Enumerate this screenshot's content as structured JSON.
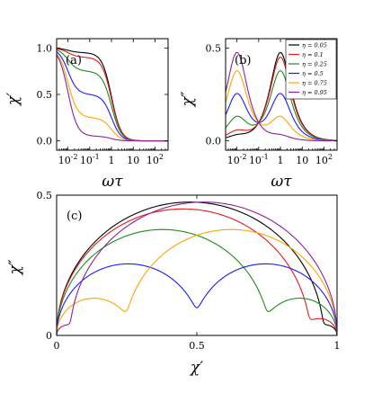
{
  "chart_data": [
    {
      "panel": "a",
      "type": "line",
      "panel_label": "(a)",
      "xlabel": "ωτ",
      "ylabel": "χ′",
      "xscale": "log",
      "xlim": [
        0.003,
        400
      ],
      "ylim": [
        -0.1,
        1.1
      ],
      "xticks": [
        {
          "v": 0.01,
          "base": "10",
          "exp": "-2"
        },
        {
          "v": 0.1,
          "base": "10",
          "exp": "-1"
        },
        {
          "v": 1,
          "base": "1",
          "exp": ""
        },
        {
          "v": 10,
          "base": "10",
          "exp": ""
        },
        {
          "v": 100,
          "base": "10",
          "exp": "2"
        }
      ],
      "yticks": [
        {
          "v": 0,
          "t": "0.0"
        },
        {
          "v": 0.5,
          "t": "0.5"
        },
        {
          "v": 1,
          "t": "1.0"
        }
      ],
      "model": "chi_real",
      "tau_ratio": 100
    },
    {
      "panel": "b",
      "type": "line",
      "panel_label": "(b)",
      "xlabel": "ωτ",
      "ylabel": "χ″",
      "xscale": "log",
      "xlim": [
        0.003,
        400
      ],
      "ylim": [
        -0.05,
        0.55
      ],
      "xticks": [
        {
          "v": 0.01,
          "base": "10",
          "exp": "-2"
        },
        {
          "v": 0.1,
          "base": "10",
          "exp": "-1"
        },
        {
          "v": 1,
          "base": "1",
          "exp": ""
        },
        {
          "v": 10,
          "base": "10",
          "exp": ""
        },
        {
          "v": 100,
          "base": "10",
          "exp": "2"
        }
      ],
      "yticks": [
        {
          "v": 0,
          "t": "0.0"
        },
        {
          "v": 0.5,
          "t": "0.5"
        }
      ],
      "model": "chi_imag",
      "tau_ratio": 100,
      "legend": "top-right"
    },
    {
      "panel": "c",
      "type": "line",
      "panel_label": "(c)",
      "xlabel": "χ′",
      "ylabel": "χ″",
      "xlim": [
        0,
        1
      ],
      "ylim": [
        0,
        0.5
      ],
      "xticks": [
        {
          "v": 0,
          "t": "0"
        },
        {
          "v": 0.5,
          "t": "0.5"
        },
        {
          "v": 1,
          "t": "1"
        }
      ],
      "yticks": [
        {
          "v": 0,
          "t": "0"
        },
        {
          "v": 0.5,
          "t": "0.5"
        }
      ],
      "model": "cole_cole",
      "tau_ratio": 100
    }
  ],
  "series": [
    {
      "label": "η = 0.05",
      "eta": 0.05,
      "color": "#000000"
    },
    {
      "label": "η = 0.1",
      "eta": 0.1,
      "color": "#e41a1c"
    },
    {
      "label": "η = 0.25",
      "eta": 0.25,
      "color": "#1f8a1f"
    },
    {
      "label": "η = 0.5",
      "eta": 0.5,
      "color": "#1a1aff"
    },
    {
      "label": "η = 0.75",
      "eta": 0.75,
      "color": "#ffa500"
    },
    {
      "label": "η = 0.95",
      "eta": 0.95,
      "color": "#8e1f9e"
    }
  ]
}
